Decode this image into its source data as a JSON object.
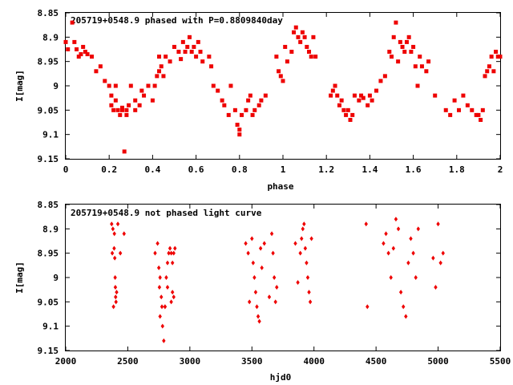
{
  "chart_data": [
    {
      "type": "scatter",
      "title": "205719+0548.9 phased with P=0.8809840day",
      "xlabel": "phase",
      "ylabel": "I[mag]",
      "xlim": [
        0,
        2
      ],
      "ylim": [
        9.15,
        8.85
      ],
      "y_inverted": true,
      "x_ticks": [
        "0",
        "0.2",
        "0.4",
        "0.6",
        "0.8",
        "1",
        "1.2",
        "1.4",
        "1.6",
        "1.8",
        "2"
      ],
      "x_tick_values": [
        0,
        0.2,
        0.4,
        0.6,
        0.8,
        1.0,
        1.2,
        1.4,
        1.6,
        1.8,
        2.0
      ],
      "y_ticks": [
        "8.85",
        "8.9",
        "8.95",
        "9",
        "9.05",
        "9.1",
        "9.15"
      ],
      "y_tick_values": [
        8.85,
        8.9,
        8.95,
        9.0,
        9.05,
        9.1,
        9.15
      ],
      "marker": "filled-square",
      "marker_color": "#ee0000",
      "grid": false,
      "series": [
        {
          "x": [
            0.0,
            0.01,
            0.03,
            0.04,
            0.05,
            0.06,
            0.07,
            0.08,
            0.09,
            0.1,
            0.12,
            0.14,
            0.16,
            0.18,
            0.2,
            0.21,
            0.21,
            0.22,
            0.23,
            0.23,
            0.24,
            0.25,
            0.26,
            0.26,
            0.27,
            0.28,
            0.28,
            0.29,
            0.3,
            0.32,
            0.32,
            0.34,
            0.35,
            0.36,
            0.38,
            0.4,
            0.41,
            0.42,
            0.43,
            0.43,
            0.44,
            0.45,
            0.46,
            0.48,
            0.5,
            0.52,
            0.53,
            0.54,
            0.55,
            0.56,
            0.57,
            0.58,
            0.59,
            0.6,
            0.61,
            0.62,
            0.63,
            0.66,
            0.67,
            0.68,
            0.7,
            0.72,
            0.73,
            0.75,
            0.76,
            0.78,
            0.79,
            0.8,
            0.8,
            0.81,
            0.83,
            0.84,
            0.85,
            0.86,
            0.87,
            0.89,
            0.9,
            0.92,
            0.97,
            0.98,
            0.99,
            1.0,
            1.01,
            1.02,
            1.04,
            1.05,
            1.06,
            1.07,
            1.08,
            1.09,
            1.1,
            1.11,
            1.12,
            1.13,
            1.14,
            1.15
          ],
          "y": [
            8.91,
            8.925,
            8.87,
            8.91,
            8.925,
            8.94,
            8.935,
            8.92,
            8.93,
            8.935,
            8.94,
            8.97,
            8.96,
            8.99,
            9.0,
            9.02,
            9.04,
            9.05,
            9.03,
            9.0,
            9.05,
            9.06,
            9.05,
            9.045,
            9.135,
            9.05,
            9.06,
            9.04,
            9.0,
            9.05,
            9.03,
            9.04,
            9.01,
            9.02,
            9.0,
            9.03,
            9.0,
            8.98,
            8.94,
            8.97,
            8.96,
            8.98,
            8.94,
            8.95,
            8.92,
            8.93,
            8.945,
            8.91,
            8.93,
            8.92,
            8.9,
            8.93,
            8.92,
            8.94,
            8.91,
            8.93,
            8.95,
            8.94,
            8.96,
            9.0,
            9.01,
            9.03,
            9.04,
            9.06,
            9.0,
            9.05,
            9.08,
            9.09,
            9.1,
            9.06,
            9.05,
            9.03,
            9.02,
            9.06,
            9.05,
            9.04,
            9.03,
            9.02,
            8.94,
            8.97,
            8.98,
            8.99,
            8.92,
            8.95,
            8.93,
            8.89,
            8.88,
            8.9,
            8.91,
            8.89,
            8.9,
            8.92,
            8.93,
            8.94,
            8.9,
            8.94
          ]
        },
        {
          "x": [
            1.22,
            1.23,
            1.24,
            1.25,
            1.26,
            1.27,
            1.28,
            1.29,
            1.3,
            1.31,
            1.32,
            1.33,
            1.35,
            1.36,
            1.37,
            1.39,
            1.4,
            1.41,
            1.43,
            1.45,
            1.47,
            1.49,
            1.5,
            1.51,
            1.52,
            1.53,
            1.54,
            1.55,
            1.56,
            1.57,
            1.58,
            1.59,
            1.6,
            1.61,
            1.62,
            1.63,
            1.64,
            1.66,
            1.67,
            1.7,
            1.75,
            1.77,
            1.79,
            1.81,
            1.83,
            1.85,
            1.87,
            1.89,
            1.9,
            1.91,
            1.92,
            1.93,
            1.94,
            1.95,
            1.96,
            1.97,
            1.98,
            1.99,
            2.0
          ],
          "y": [
            9.02,
            9.01,
            9.0,
            9.02,
            9.04,
            9.03,
            9.05,
            9.06,
            9.05,
            9.07,
            9.06,
            9.02,
            9.03,
            9.02,
            9.025,
            9.04,
            9.02,
            9.03,
            9.01,
            8.99,
            8.98,
            8.93,
            8.94,
            8.9,
            8.87,
            8.95,
            8.91,
            8.92,
            8.93,
            8.91,
            8.9,
            8.93,
            8.92,
            8.96,
            9.0,
            8.94,
            8.96,
            8.97,
            8.95,
            9.02,
            9.05,
            9.06,
            9.03,
            9.05,
            9.02,
            9.04,
            9.05,
            9.06,
            9.06,
            9.07,
            9.05,
            8.98,
            8.97,
            8.96,
            8.94,
            8.97,
            8.93,
            8.94,
            8.94
          ]
        }
      ]
    },
    {
      "type": "scatter",
      "title": "205719+0548.9 not phased light curve",
      "xlabel": "hjd0",
      "ylabel": "I[mag]",
      "xlim": [
        2000,
        5500
      ],
      "ylim": [
        9.15,
        8.85
      ],
      "y_inverted": true,
      "x_ticks": [
        "2000",
        "2500",
        "3000",
        "3500",
        "4000",
        "4500",
        "5000",
        "5500"
      ],
      "x_tick_values": [
        2000,
        2500,
        3000,
        3500,
        4000,
        4500,
        5000,
        5500
      ],
      "y_ticks": [
        "8.85",
        "8.9",
        "8.95",
        "9",
        "9.05",
        "9.1",
        "9.15"
      ],
      "y_tick_values": [
        8.85,
        8.9,
        8.95,
        9.0,
        9.05,
        9.1,
        9.15
      ],
      "marker": "filled-diamond",
      "marker_color": "#ee0000",
      "grid": false,
      "series": [
        {
          "x": [
            2370,
            2375,
            2380,
            2385,
            2390,
            2392,
            2395,
            2398,
            2400,
            2402,
            2405,
            2410,
            2420,
            2440,
            2470,
            2720,
            2740,
            2750,
            2755,
            2760,
            2770,
            2775,
            2780,
            2790,
            2800,
            2810,
            2820,
            2830,
            2840,
            2850,
            2860,
            2870,
            2880,
            2760,
            2800,
            2820,
            2850,
            2860,
            2870,
            3450,
            3470,
            3480,
            3500,
            3510,
            3520,
            3530,
            3540,
            3550,
            3560,
            3570,
            3580,
            3600,
            3640,
            3660,
            3670,
            3680,
            3690,
            3700,
            3850,
            3870,
            3890,
            3900,
            3910,
            3920,
            3930,
            3940,
            3950,
            3960,
            3970,
            3980,
            4420,
            4430,
            4560,
            4580,
            4600,
            4620,
            4640,
            4660,
            4680,
            4700,
            4720,
            4740,
            4760,
            4780,
            4800,
            4820,
            4840,
            4960,
            4980,
            5000,
            5020,
            5040
          ],
          "y": [
            8.89,
            8.95,
            8.9,
            9.06,
            8.94,
            8.91,
            8.96,
            9.0,
            9.02,
            9.04,
            9.05,
            9.03,
            8.89,
            8.95,
            8.91,
            8.95,
            8.93,
            8.98,
            9.02,
            9.08,
            9.04,
            9.06,
            9.1,
            9.13,
            9.06,
            9.0,
            8.97,
            8.95,
            8.94,
            9.05,
            9.03,
            8.95,
            8.94,
            9.0,
            9.06,
            9.02,
            8.95,
            8.97,
            9.04,
            8.93,
            8.95,
            9.05,
            8.92,
            8.97,
            9.0,
            9.03,
            9.06,
            9.08,
            9.09,
            8.94,
            8.98,
            8.93,
            9.04,
            8.91,
            8.95,
            9.0,
            9.05,
            9.02,
            8.93,
            9.01,
            8.95,
            8.92,
            8.9,
            8.89,
            8.94,
            8.97,
            9.0,
            9.03,
            9.05,
            8.92,
            8.89,
            9.06,
            8.93,
            8.91,
            8.95,
            9.0,
            8.94,
            8.88,
            8.9,
            9.03,
            9.06,
            9.08,
            8.97,
            8.92,
            8.95,
            9.0,
            8.9,
            8.96,
            9.02,
            8.89,
            8.97,
            8.95
          ],
          "name": ""
        }
      ]
    }
  ]
}
